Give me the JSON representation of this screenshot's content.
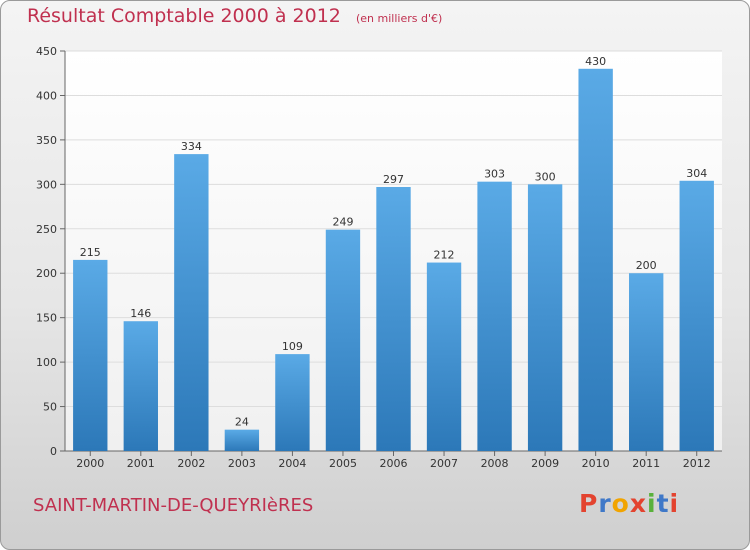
{
  "header": {
    "title": "Résultat Comptable 2000 à 2012",
    "unit": "(en milliers d'€)"
  },
  "footer": {
    "commune": "SAINT-MARTIN-DE-QUEYRIèRES",
    "logo_text": "Proxiti",
    "logo_colors": [
      "#e3432f",
      "#3f78c8",
      "#f1a400",
      "#e3432f",
      "#59b13b",
      "#3f78c8",
      "#e3432f"
    ]
  },
  "chart_data": {
    "type": "bar",
    "title": "Résultat Comptable 2000 à 2012",
    "subtitle": "(en milliers d'€)",
    "categories": [
      "2000",
      "2001",
      "2002",
      "2003",
      "2004",
      "2005",
      "2006",
      "2007",
      "2008",
      "2009",
      "2010",
      "2011",
      "2012"
    ],
    "values": [
      215,
      146,
      334,
      24,
      109,
      249,
      297,
      212,
      303,
      300,
      430,
      200,
      304
    ],
    "xlabel": "",
    "ylabel": "",
    "ylim": [
      0,
      450
    ],
    "yticks": [
      0,
      50,
      100,
      150,
      200,
      250,
      300,
      350,
      400,
      450
    ],
    "grid": true,
    "data_labels": true,
    "bar_color": "#4f9fdc"
  }
}
